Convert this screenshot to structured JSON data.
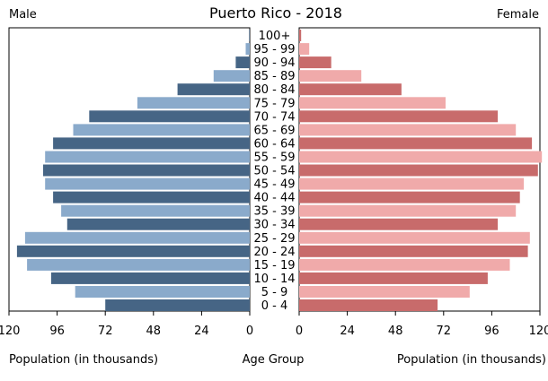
{
  "chart_data": {
    "type": "bar",
    "subtype": "population-pyramid",
    "title": "Puerto Rico - 2018",
    "left_label": "Male",
    "right_label": "Female",
    "xlabel_left": "Population (in thousands)",
    "xlabel_center": "Age Group",
    "xlabel_right": "Population (in thousands)",
    "xlim": [
      0,
      120
    ],
    "x_ticks_left": [
      "120",
      "96",
      "72",
      "48",
      "24",
      "0"
    ],
    "x_ticks_right": [
      "0",
      "24",
      "48",
      "72",
      "96",
      "120"
    ],
    "categories": [
      "100+",
      "95 - 99",
      "90 - 94",
      "85 - 89",
      "80 - 84",
      "75 - 79",
      "70 - 74",
      "65 - 69",
      "60 - 64",
      "55 - 59",
      "50 - 54",
      "45 - 49",
      "40 - 44",
      "35 - 39",
      "30 - 34",
      "25 - 29",
      "20 - 24",
      "15 - 19",
      "10 - 14",
      "5 - 9",
      "0 - 4"
    ],
    "series": [
      {
        "name": "Male",
        "values": [
          0.3,
          2,
          7,
          18,
          36,
          56,
          80,
          88,
          98,
          102,
          103,
          102,
          98,
          94,
          91,
          112,
          116,
          111,
          99,
          87,
          72
        ]
      },
      {
        "name": "Female",
        "values": [
          1,
          5,
          16,
          31,
          51,
          73,
          99,
          108,
          116,
          121,
          119,
          112,
          110,
          108,
          99,
          115,
          114,
          105,
          94,
          85,
          69
        ]
      }
    ],
    "colors": {
      "male_dark": "#466585",
      "male_light": "#8aaacb",
      "female_dark": "#c86b6b",
      "female_light": "#f0aaaa"
    },
    "grid": false,
    "legend": "none"
  }
}
